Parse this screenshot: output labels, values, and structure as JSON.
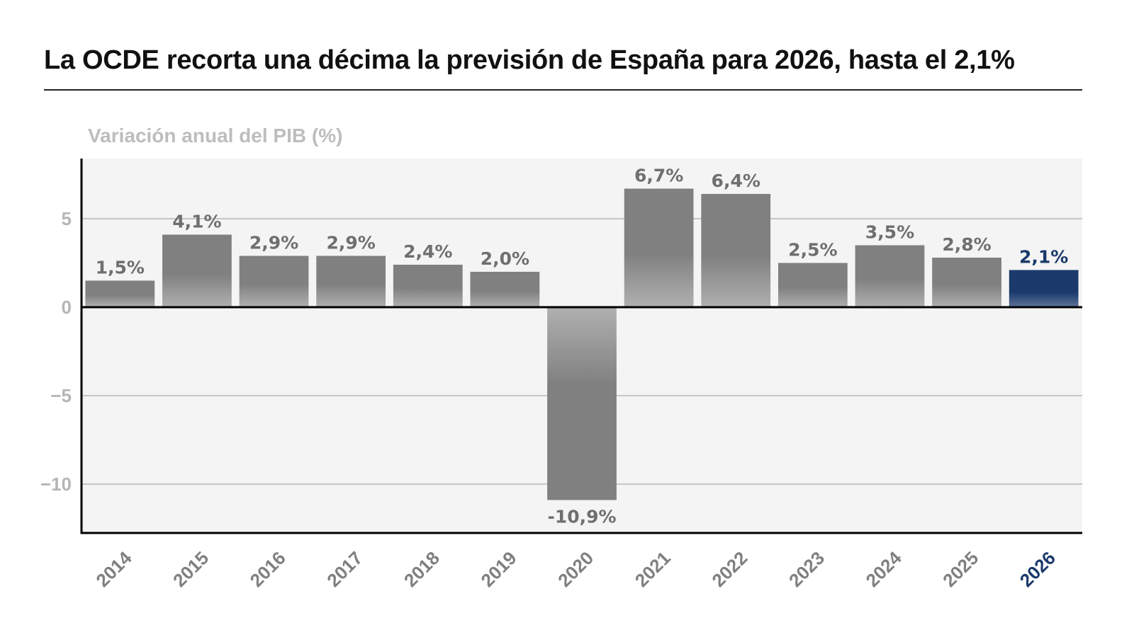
{
  "chart_data": {
    "type": "bar",
    "title": "La OCDE recorta una décima la previsión de España para 2026, hasta el 2,1%",
    "ylabel": "Variación anual del PIB (%)",
    "xlabel": "",
    "categories": [
      "2014",
      "2015",
      "2016",
      "2017",
      "2018",
      "2019",
      "2020",
      "2021",
      "2022",
      "2023",
      "2024",
      "2025",
      "2026"
    ],
    "values": [
      1.5,
      4.1,
      2.9,
      2.9,
      2.4,
      2.0,
      -10.9,
      6.7,
      6.4,
      2.5,
      3.5,
      2.8,
      2.1
    ],
    "data_labels": [
      "1,5%",
      "4,1%",
      "2,9%",
      "2,9%",
      "2,4%",
      "2,0%",
      "-10,9%",
      "6,7%",
      "6,4%",
      "2,5%",
      "3,5%",
      "2,8%",
      "2,1%"
    ],
    "highlight_category": "2026",
    "yticks": [
      5,
      0,
      -5,
      -10
    ],
    "ytick_labels": [
      "5",
      "0",
      "−5",
      "−10"
    ],
    "ylim": [
      -13,
      8.5
    ],
    "grid": true,
    "colors": {
      "bar": "#808080",
      "bar_fade": "#b0b0b0",
      "highlight": "#1b3a6b",
      "plot_bg": "#f4f4f4",
      "tick": "#808080"
    }
  }
}
